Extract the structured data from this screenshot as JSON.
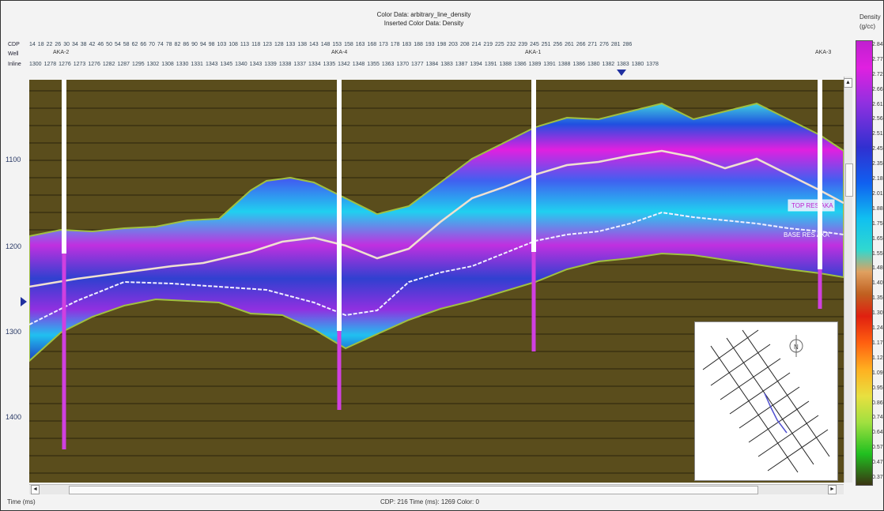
{
  "header": {
    "color_data": "Color Data: arbitrary_line_density",
    "inserted_color_data": "Inserted Color Data: Density"
  },
  "rows": {
    "cdp_label": "CDP",
    "well_label": "Well",
    "inline_label": "Inline",
    "cdp_values": [
      "14",
      "18",
      "22",
      "26",
      "30",
      "34",
      "38",
      "42",
      "46",
      "50",
      "54",
      "58",
      "62",
      "66",
      "70",
      "74",
      "78",
      "82",
      "86",
      "90",
      "94",
      "98",
      "103",
      "108",
      "113",
      "118",
      "123",
      "128",
      "133",
      "138",
      "143",
      "148",
      "153",
      "158",
      "163",
      "168",
      "173",
      "178",
      "183",
      "188",
      "193",
      "198",
      "203",
      "208",
      "214",
      "219",
      "225",
      "232",
      "239",
      "245",
      "251",
      "256",
      "261",
      "266",
      "271",
      "276",
      "281",
      "286"
    ],
    "inline_values": [
      "1300",
      "1278",
      "1276",
      "1273",
      "1276",
      "1282",
      "1287",
      "1295",
      "1302",
      "1308",
      "1330",
      "1331",
      "1343",
      "1345",
      "1340",
      "1343",
      "1339",
      "1338",
      "1337",
      "1334",
      "1335",
      "1342",
      "1348",
      "1355",
      "1363",
      "1370",
      "1377",
      "1384",
      "1383",
      "1387",
      "1394",
      "1391",
      "1388",
      "1386",
      "1389",
      "1391",
      "1388",
      "1386",
      "1380",
      "1382",
      "1383",
      "1380",
      "1378"
    ]
  },
  "wells": [
    {
      "name": "AKA-2"
    },
    {
      "name": "AKA-4"
    },
    {
      "name": "AKA-1"
    },
    {
      "name": "AKA-3"
    }
  ],
  "horizons": {
    "top": "TOP RES AKA",
    "base": "BASE RES AKA"
  },
  "y_axis": {
    "ticks": [
      "1100",
      "1200",
      "1300",
      "1400"
    ]
  },
  "colorbar": {
    "title": "Density",
    "unit": "(g/cc)",
    "ticks": [
      "2.84",
      "2.77",
      "2.72",
      "2.66",
      "2.61",
      "2.56",
      "2.51",
      "2.45",
      "2.35",
      "2.18",
      "2.01",
      "1.88",
      "1.75",
      "1.65",
      "1.55",
      "1.48",
      "1.40",
      "1.35",
      "1.30",
      "1.24",
      "1.17",
      "1.12",
      "1.09",
      "0.95",
      "0.86",
      "0.74",
      "0.64",
      "0.57",
      "0.47",
      "0.37"
    ]
  },
  "status": {
    "left": "Time (ms)",
    "center": "CDP: 216  Time (ms): 1269  Color: 0"
  },
  "scroll": {
    "left_arrow": "◄",
    "right_arrow": "►",
    "up_arrow": "▲",
    "down_arrow": "▼"
  },
  "colors": {
    "background": "#5a4d1c",
    "well": "#ffffff",
    "well_lower": "#d040e0",
    "accent": "#2030a0"
  },
  "inset_map": {
    "north_label": "N"
  }
}
